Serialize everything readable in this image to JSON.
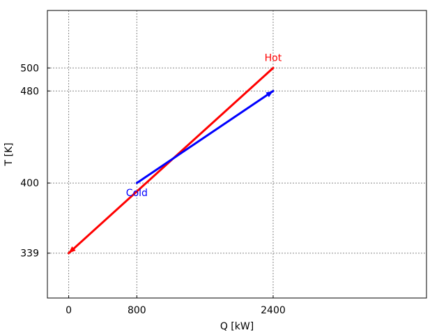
{
  "chart_data": {
    "type": "line",
    "title": "",
    "xlabel": "Q [kW]",
    "ylabel": "T [K]",
    "xlim": [
      -250,
      4200
    ],
    "ylim": [
      300,
      550
    ],
    "xticks": [
      0,
      800,
      2400
    ],
    "yticks": [
      339,
      400,
      480,
      500
    ],
    "grid": true,
    "grid_style": "dotted",
    "series": [
      {
        "name": "Hot",
        "color": "#ff0000",
        "x": [
          2400,
          0
        ],
        "y": [
          500,
          339
        ],
        "arrow_at": "end",
        "label_at": "start"
      },
      {
        "name": "Cold",
        "color": "#0000ff",
        "x": [
          800,
          2400
        ],
        "y": [
          400,
          480
        ],
        "arrow_at": "end",
        "label_at": "start"
      }
    ]
  }
}
